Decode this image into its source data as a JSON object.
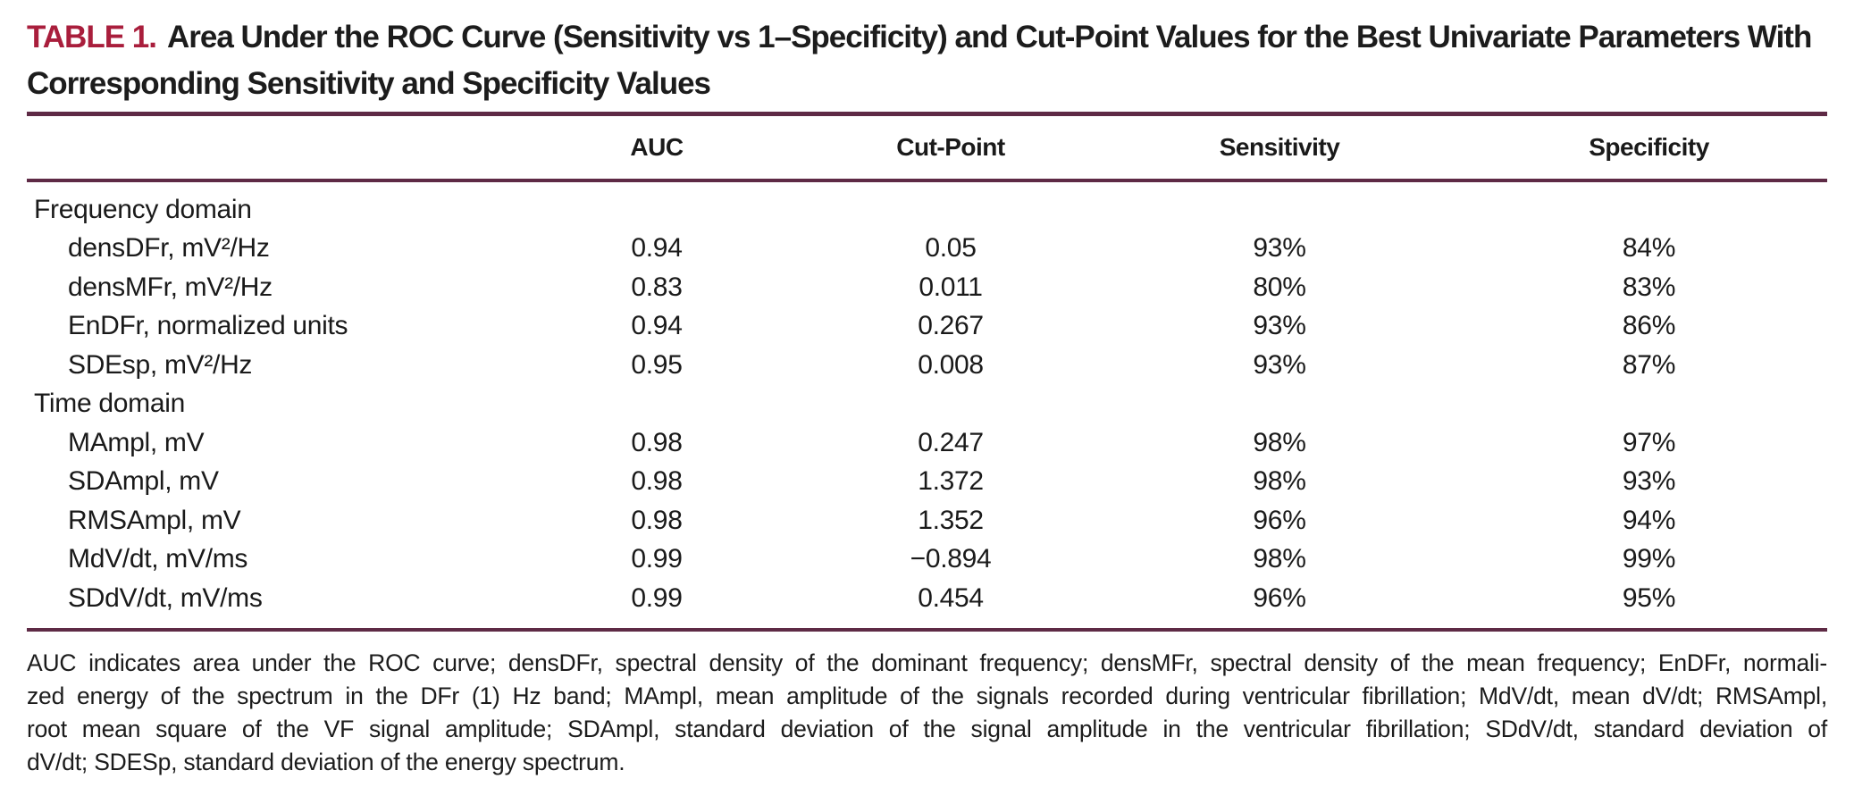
{
  "title": {
    "label": "TABLE 1.",
    "text": "Area Under the ROC Curve (Sensitivity vs 1–Specificity) and Cut-Point Values for the Best Univariate Parameters With Corresponding Sensitivity and Specificity Values"
  },
  "colors": {
    "accent_red": "#a91e3c",
    "rule_maroon": "#5e2a45",
    "text": "#1a1a1a",
    "background": "#ffffff"
  },
  "table": {
    "columns": [
      "",
      "AUC",
      "Cut-Point",
      "Sensitivity",
      "Specificity"
    ],
    "rows": [
      {
        "type": "section",
        "label": "Frequency domain",
        "auc": "",
        "cut_point": "",
        "sensitivity": "",
        "specificity": ""
      },
      {
        "type": "item",
        "label": "densDFr, mV²/Hz",
        "auc": "0.94",
        "cut_point": "0.05",
        "sensitivity": "93%",
        "specificity": "84%"
      },
      {
        "type": "item",
        "label": "densMFr, mV²/Hz",
        "auc": "0.83",
        "cut_point": "0.011",
        "sensitivity": "80%",
        "specificity": "83%"
      },
      {
        "type": "item",
        "label": "EnDFr, normalized units",
        "auc": "0.94",
        "cut_point": "0.267",
        "sensitivity": "93%",
        "specificity": "86%"
      },
      {
        "type": "item",
        "label": "SDEsp, mV²/Hz",
        "auc": "0.95",
        "cut_point": "0.008",
        "sensitivity": "93%",
        "specificity": "87%"
      },
      {
        "type": "section",
        "label": "Time domain",
        "auc": "",
        "cut_point": "",
        "sensitivity": "",
        "specificity": ""
      },
      {
        "type": "item",
        "label": "MAmpl, mV",
        "auc": "0.98",
        "cut_point": "0.247",
        "sensitivity": "98%",
        "specificity": "97%"
      },
      {
        "type": "item",
        "label": "SDAmpl, mV",
        "auc": "0.98",
        "cut_point": "1.372",
        "sensitivity": "98%",
        "specificity": "93%"
      },
      {
        "type": "item",
        "label": "RMSAmpl, mV",
        "auc": "0.98",
        "cut_point": "1.352",
        "sensitivity": "96%",
        "specificity": "94%"
      },
      {
        "type": "item",
        "label": "MdV/dt, mV/ms",
        "auc": "0.99",
        "cut_point": "−0.894",
        "sensitivity": "98%",
        "specificity": "99%"
      },
      {
        "type": "item",
        "label": "SDdV/dt, mV/ms",
        "auc": "0.99",
        "cut_point": "0.454",
        "sensitivity": "96%",
        "specificity": "95%"
      }
    ]
  },
  "footnote": {
    "lines": [
      "AUC indicates area under the ROC curve; densDFr, spectral density of the dominant frequency; densMFr, spectral density of the mean frequency; EnDFr, normali-",
      "zed energy of the spectrum in the DFr (1) Hz band; MAmpl, mean amplitude of the signals recorded during ventricular fibrillation; MdV/dt, mean dV/dt; RMSAmpl,",
      "root mean square of the VF signal amplitude; SDAmpl, standard deviation of the signal amplitude in the ventricular fibrillation; SDdV/dt, standard deviation of",
      "dV/dt; SDESp, standard deviation of the energy spectrum."
    ]
  }
}
